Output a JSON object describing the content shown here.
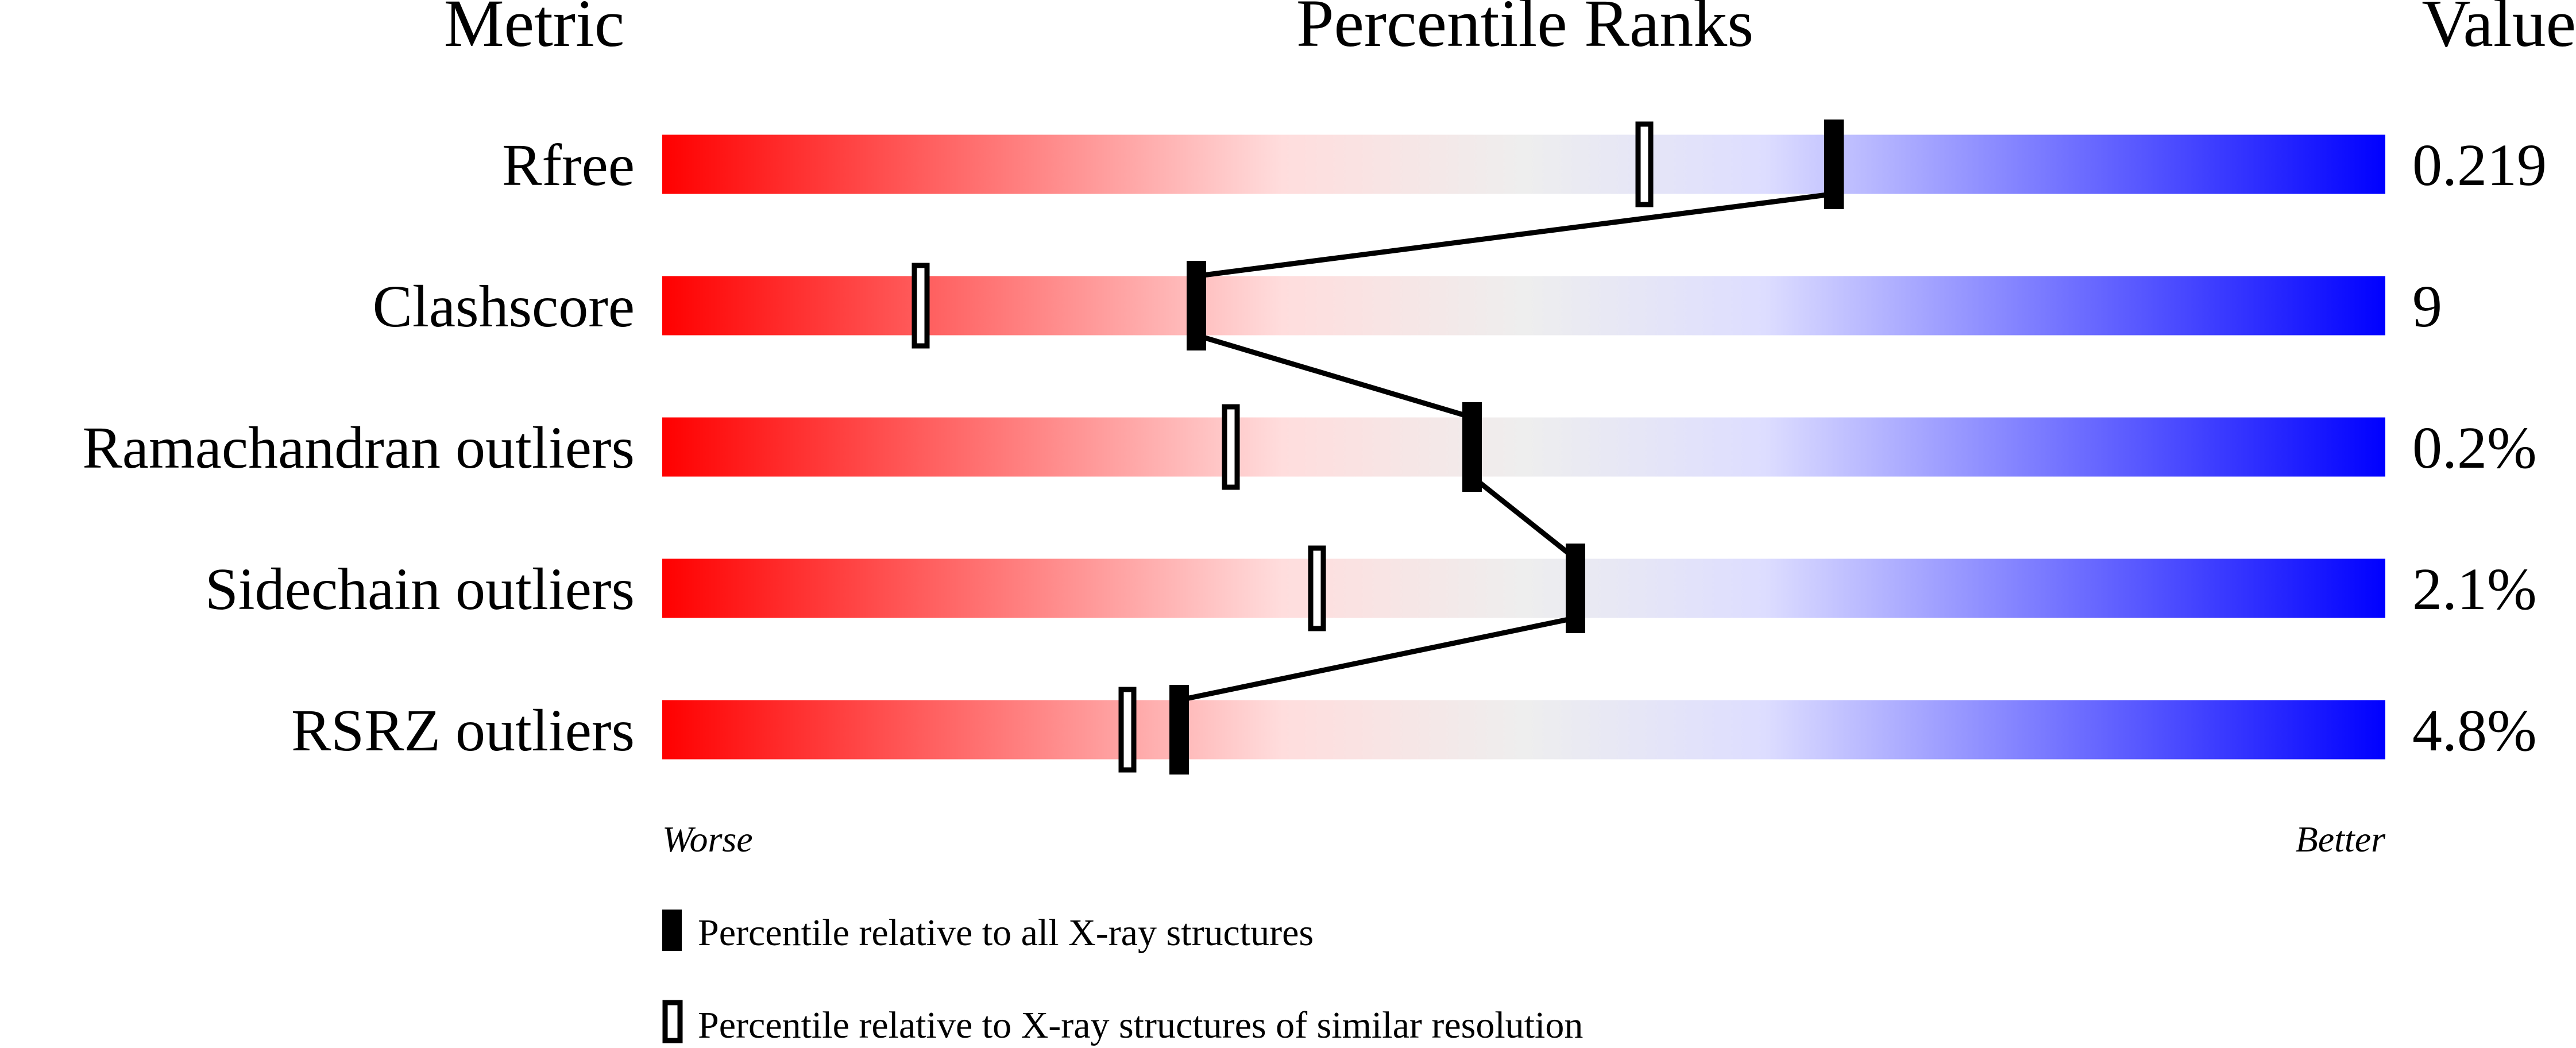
{
  "chart_data": {
    "type": "percentile-slider",
    "headers": {
      "metric": "Metric",
      "ranks": "Percentile Ranks",
      "value": "Value"
    },
    "xlim": [
      0,
      100
    ],
    "axis_labels": {
      "left": "Worse",
      "right": "Better"
    },
    "colors": {
      "worse": "#ff0000",
      "middle": "#eeeeee",
      "better": "#0000ff"
    },
    "metrics": [
      {
        "name": "Rfree",
        "value": "0.219",
        "percentile_all": 68,
        "percentile_similar": 57
      },
      {
        "name": "Clashscore",
        "value": "9",
        "percentile_all": 31,
        "percentile_similar": 15
      },
      {
        "name": "Ramachandran outliers",
        "value": "0.2%",
        "percentile_all": 47,
        "percentile_similar": 33
      },
      {
        "name": "Sidechain outliers",
        "value": "2.1%",
        "percentile_all": 53,
        "percentile_similar": 38
      },
      {
        "name": "RSRZ outliers",
        "value": "4.8%",
        "percentile_all": 30,
        "percentile_similar": 27
      }
    ],
    "legend": [
      {
        "marker": "filled",
        "label": "Percentile relative to all X-ray structures"
      },
      {
        "marker": "open",
        "label": "Percentile relative to X-ray structures of similar resolution"
      }
    ]
  }
}
